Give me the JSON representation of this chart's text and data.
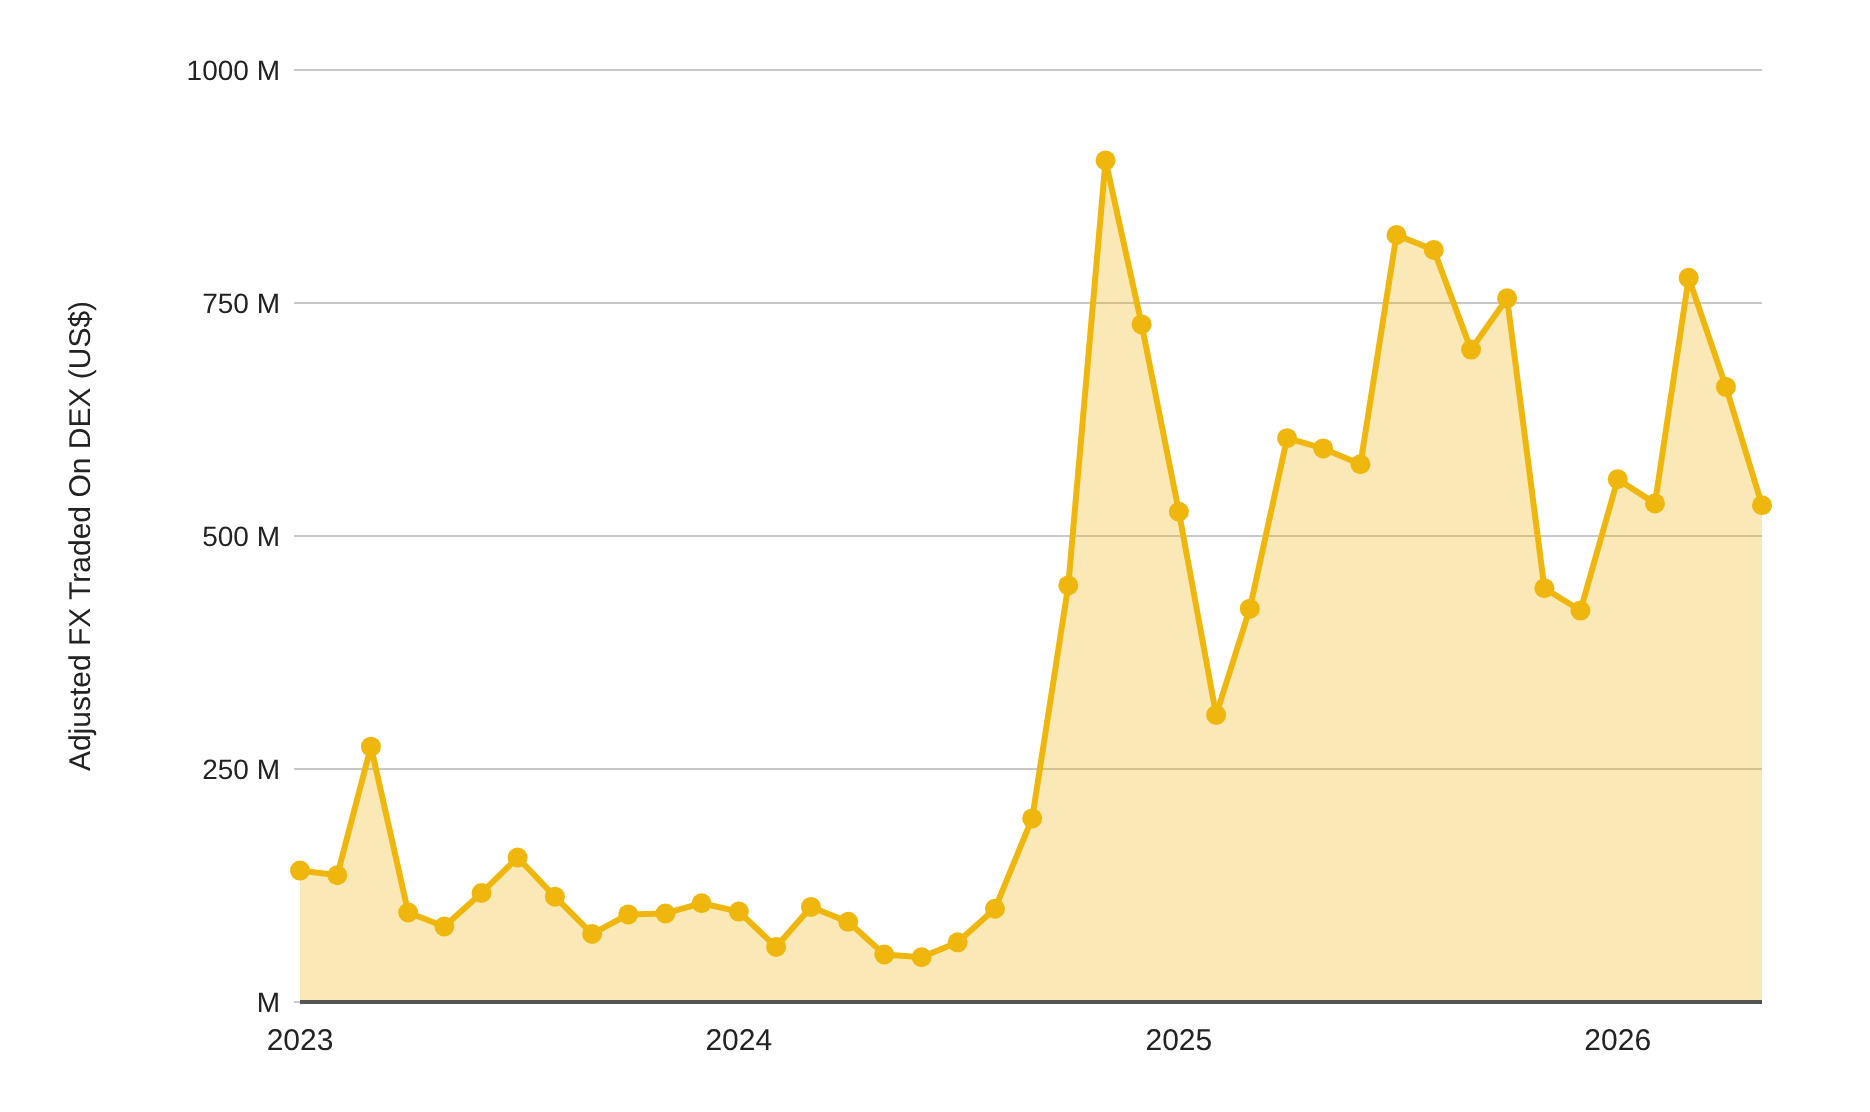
{
  "chart_data": {
    "type": "area",
    "ylabel": "Adjusted FX Traded On DEX (US$)",
    "x": [
      "2023-01",
      "2023-02",
      "2023-03",
      "2023-04",
      "2023-05",
      "2023-06",
      "2023-07",
      "2023-08",
      "2023-09",
      "2023-10",
      "2023-11",
      "2023-12",
      "2024-01",
      "2024-02",
      "2024-03",
      "2024-04",
      "2024-05",
      "2024-06",
      "2024-07",
      "2024-08",
      "2024-09",
      "2024-10",
      "2024-11",
      "2024-12",
      "2025-01",
      "2025-02",
      "2025-03",
      "2025-04",
      "2025-05",
      "2025-06",
      "2025-07",
      "2025-08",
      "2025-09",
      "2025-10",
      "2025-11",
      "2025-12",
      "2026-01",
      "2026-02",
      "2026-03",
      "2026-04",
      "2026-05"
    ],
    "series": [
      {
        "color": "#efb70e",
        "values": [
          141,
          136,
          274,
          96,
          81,
          117,
          155,
          113,
          73,
          94,
          95,
          106,
          97,
          59,
          102,
          86,
          51,
          48,
          64,
          100,
          197,
          447,
          903,
          727,
          526,
          308,
          422,
          605,
          594,
          577,
          823,
          807,
          700,
          755,
          444,
          420,
          561,
          535,
          777,
          660,
          533
        ]
      }
    ],
    "xlim": [
      "2023-01",
      "2026-05"
    ],
    "xticks": [
      {
        "value": "2023-01",
        "label": "2023"
      },
      {
        "value": "2024-01",
        "label": "2024"
      },
      {
        "value": "2025-01",
        "label": "2025"
      },
      {
        "value": "2026-01",
        "label": "2026"
      }
    ],
    "ylim": [
      0,
      1000
    ],
    "yticks": [
      {
        "value": 0,
        "label": "M"
      },
      {
        "value": 250,
        "label": "250 M"
      },
      {
        "value": 500,
        "label": "500 M"
      },
      {
        "value": 750,
        "label": "750 M"
      },
      {
        "value": 1000,
        "label": "1000 M"
      }
    ],
    "grid": "y",
    "marker": "circle",
    "line_style": "solid"
  }
}
